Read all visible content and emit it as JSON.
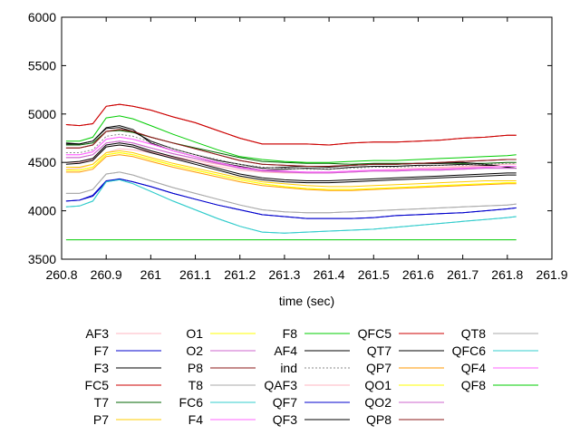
{
  "chart_data": {
    "type": "line",
    "title": "",
    "xlabel": "time (sec)",
    "ylabel": "",
    "xlim": [
      260.8,
      261.9
    ],
    "ylim": [
      3500,
      6000
    ],
    "x_ticks": [
      "260.8",
      "260.9",
      "261",
      "261.1",
      "261.2",
      "261.3",
      "261.4",
      "261.5",
      "261.6",
      "261.7",
      "261.8",
      "261.9"
    ],
    "y_ticks": [
      "3500",
      "4000",
      "4500",
      "5000",
      "5500",
      "6000"
    ],
    "grid": false,
    "legend_position": "bottom",
    "x": [
      260.81,
      260.84,
      260.87,
      260.9,
      260.93,
      260.96,
      261.0,
      261.05,
      261.1,
      261.15,
      261.2,
      261.25,
      261.3,
      261.35,
      261.4,
      261.45,
      261.5,
      261.55,
      261.6,
      261.65,
      261.7,
      261.75,
      261.8,
      261.82
    ],
    "series": [
      {
        "name": "AF3",
        "color": "#ffb6c1",
        "dash": "",
        "values": [
          4430,
          4440,
          4480,
          4600,
          4640,
          4630,
          4600,
          4560,
          4520,
          4480,
          4440,
          4420,
          4410,
          4400,
          4400,
          4410,
          4420,
          4430,
          4440,
          4450,
          4460,
          4470,
          4480,
          4480
        ]
      },
      {
        "name": "F7",
        "color": "#0000cc",
        "dash": "",
        "values": [
          4100,
          4110,
          4150,
          4300,
          4330,
          4300,
          4250,
          4180,
          4120,
          4060,
          4010,
          3960,
          3940,
          3920,
          3920,
          3920,
          3930,
          3950,
          3960,
          3970,
          3980,
          4000,
          4020,
          4030
        ]
      },
      {
        "name": "F3",
        "color": "#000000",
        "dash": "",
        "values": [
          4690,
          4690,
          4720,
          4860,
          4880,
          4840,
          4700,
          4620,
          4560,
          4500,
          4460,
          4420,
          4430,
          4440,
          4430,
          4450,
          4460,
          4460,
          4470,
          4470,
          4480,
          4470,
          4450,
          4440
        ]
      },
      {
        "name": "FC5",
        "color": "#cc0000",
        "dash": "",
        "values": [
          4890,
          4880,
          4900,
          5080,
          5100,
          5080,
          5040,
          4970,
          4910,
          4830,
          4750,
          4690,
          4690,
          4690,
          4680,
          4700,
          4710,
          4710,
          4720,
          4730,
          4750,
          4760,
          4780,
          4780
        ]
      },
      {
        "name": "T7",
        "color": "#006600",
        "dash": "",
        "values": [
          4680,
          4680,
          4700,
          4820,
          4830,
          4810,
          4760,
          4700,
          4650,
          4600,
          4550,
          4510,
          4500,
          4490,
          4490,
          4480,
          4490,
          4490,
          4490,
          4490,
          4490,
          4490,
          4500,
          4500
        ]
      },
      {
        "name": "P7",
        "color": "#ffcc00",
        "dash": "",
        "values": [
          4450,
          4450,
          4480,
          4600,
          4620,
          4600,
          4550,
          4490,
          4440,
          4390,
          4340,
          4300,
          4280,
          4260,
          4250,
          4250,
          4260,
          4270,
          4280,
          4290,
          4300,
          4310,
          4310,
          4310
        ]
      },
      {
        "name": "O1",
        "color": "#ffff00",
        "dash": "",
        "values": [
          4420,
          4420,
          4450,
          4580,
          4600,
          4580,
          4530,
          4470,
          4420,
          4370,
          4320,
          4280,
          4250,
          4230,
          4220,
          4220,
          4230,
          4240,
          4250,
          4260,
          4270,
          4280,
          4290,
          4290
        ]
      },
      {
        "name": "O2",
        "color": "#cc66cc",
        "dash": "",
        "values": [
          4550,
          4550,
          4580,
          4700,
          4720,
          4700,
          4650,
          4590,
          4540,
          4490,
          4440,
          4410,
          4400,
          4390,
          4390,
          4400,
          4410,
          4410,
          4420,
          4420,
          4430,
          4440,
          4440,
          4440
        ]
      },
      {
        "name": "P8",
        "color": "#8b1a1a",
        "dash": "",
        "values": [
          4650,
          4650,
          4680,
          4820,
          4840,
          4820,
          4760,
          4700,
          4640,
          4580,
          4520,
          4480,
          4470,
          4460,
          4460,
          4470,
          4480,
          4480,
          4490,
          4500,
          4510,
          4520,
          4530,
          4530
        ]
      },
      {
        "name": "T8",
        "color": "#aaaaaa",
        "dash": "",
        "values": [
          4180,
          4180,
          4220,
          4380,
          4400,
          4370,
          4310,
          4240,
          4180,
          4120,
          4060,
          4010,
          3990,
          3980,
          3980,
          3990,
          4000,
          4010,
          4020,
          4030,
          4040,
          4050,
          4060,
          4070
        ]
      },
      {
        "name": "FC6",
        "color": "#33cccc",
        "dash": "",
        "values": [
          4040,
          4050,
          4100,
          4300,
          4320,
          4280,
          4200,
          4100,
          4010,
          3920,
          3840,
          3780,
          3770,
          3780,
          3790,
          3800,
          3810,
          3830,
          3850,
          3870,
          3890,
          3910,
          3930,
          3940
        ]
      },
      {
        "name": "F4",
        "color": "#ff66ff",
        "dash": "",
        "values": [
          4580,
          4580,
          4610,
          4740,
          4760,
          4740,
          4690,
          4620,
          4560,
          4500,
          4450,
          4420,
          4410,
          4400,
          4400,
          4410,
          4420,
          4420,
          4430,
          4430,
          4440,
          4450,
          4460,
          4460
        ]
      },
      {
        "name": "F8",
        "color": "#00cc00",
        "dash": "",
        "values": [
          4720,
          4720,
          4760,
          4960,
          4980,
          4950,
          4880,
          4790,
          4710,
          4630,
          4560,
          4530,
          4510,
          4500,
          4500,
          4510,
          4520,
          4520,
          4530,
          4540,
          4550,
          4560,
          4570,
          4580
        ]
      },
      {
        "name": "AF4",
        "color": "#000000",
        "dash": "",
        "values": [
          4700,
          4690,
          4720,
          4850,
          4860,
          4820,
          4720,
          4640,
          4580,
          4520,
          4480,
          4440,
          4450,
          4460,
          4450,
          4470,
          4480,
          4480,
          4490,
          4490,
          4500,
          4480,
          4450,
          4440
        ]
      },
      {
        "name": "ind",
        "color": "#888888",
        "dash": "2,2",
        "values": [
          4600,
          4600,
          4630,
          4770,
          4790,
          4770,
          4710,
          4640,
          4580,
          4530,
          4480,
          4450,
          4440,
          4430,
          4430,
          4440,
          4450,
          4450,
          4460,
          4470,
          4470,
          4480,
          4490,
          4490
        ]
      },
      {
        "name": "QAF3",
        "color": "#ffb6c1",
        "dash": "",
        "values": [
          4500,
          4500,
          4530,
          4660,
          4680,
          4660,
          4610,
          4550,
          4500,
          4460,
          4420,
          4400,
          4390,
          4390,
          4390,
          4400,
          4410,
          4420,
          4430,
          4440,
          4450,
          4460,
          4460,
          4460
        ]
      },
      {
        "name": "QF7",
        "color": "#0000cc",
        "dash": "",
        "values": [
          4100,
          4110,
          4160,
          4310,
          4330,
          4300,
          4250,
          4180,
          4120,
          4060,
          4010,
          3960,
          3940,
          3920,
          3920,
          3920,
          3930,
          3950,
          3960,
          3970,
          3980,
          4000,
          4020,
          4030
        ]
      },
      {
        "name": "QF3",
        "color": "#000000",
        "dash": "",
        "values": [
          4500,
          4510,
          4540,
          4680,
          4700,
          4680,
          4620,
          4560,
          4500,
          4440,
          4380,
          4340,
          4320,
          4310,
          4310,
          4320,
          4330,
          4340,
          4350,
          4360,
          4370,
          4380,
          4390,
          4390
        ]
      },
      {
        "name": "QFC5",
        "color": "#cc0000",
        "dash": "",
        "values": [
          4890,
          4880,
          4900,
          5080,
          5100,
          5080,
          5040,
          4970,
          4910,
          4830,
          4750,
          4690,
          4690,
          4690,
          4680,
          4700,
          4710,
          4710,
          4720,
          4730,
          4750,
          4760,
          4780,
          4780
        ]
      },
      {
        "name": "QT7",
        "color": "#000000",
        "dash": "",
        "values": [
          4480,
          4490,
          4520,
          4660,
          4680,
          4660,
          4600,
          4540,
          4480,
          4420,
          4360,
          4320,
          4300,
          4290,
          4290,
          4300,
          4310,
          4320,
          4330,
          4340,
          4350,
          4360,
          4370,
          4370
        ]
      },
      {
        "name": "QP7",
        "color": "#ff9900",
        "dash": "",
        "values": [
          4400,
          4400,
          4430,
          4560,
          4580,
          4560,
          4510,
          4450,
          4400,
          4350,
          4300,
          4260,
          4240,
          4220,
          4210,
          4210,
          4220,
          4230,
          4240,
          4250,
          4260,
          4270,
          4280,
          4280
        ]
      },
      {
        "name": "QO1",
        "color": "#ffff00",
        "dash": "",
        "values": [
          4420,
          4420,
          4450,
          4580,
          4600,
          4580,
          4530,
          4470,
          4420,
          4370,
          4320,
          4280,
          4250,
          4230,
          4220,
          4220,
          4230,
          4240,
          4250,
          4260,
          4270,
          4280,
          4290,
          4290
        ]
      },
      {
        "name": "QO2",
        "color": "#cc66cc",
        "dash": "",
        "values": [
          4550,
          4550,
          4580,
          4700,
          4720,
          4700,
          4650,
          4590,
          4540,
          4490,
          4440,
          4410,
          4400,
          4390,
          4390,
          4400,
          4410,
          4410,
          4420,
          4420,
          4430,
          4440,
          4440,
          4440
        ]
      },
      {
        "name": "QP8",
        "color": "#8b1a1a",
        "dash": "",
        "values": [
          4650,
          4650,
          4680,
          4820,
          4840,
          4820,
          4760,
          4700,
          4640,
          4580,
          4520,
          4480,
          4470,
          4460,
          4460,
          4470,
          4480,
          4480,
          4490,
          4500,
          4510,
          4520,
          4530,
          4530
        ]
      },
      {
        "name": "QT8",
        "color": "#aaaaaa",
        "dash": "",
        "values": [
          4180,
          4180,
          4220,
          4380,
          4400,
          4370,
          4310,
          4240,
          4180,
          4120,
          4060,
          4010,
          3990,
          3980,
          3980,
          3990,
          4000,
          4010,
          4020,
          4030,
          4040,
          4050,
          4060,
          4070
        ]
      },
      {
        "name": "QFC6",
        "color": "#33cccc",
        "dash": "",
        "values": [
          4040,
          4050,
          4100,
          4300,
          4320,
          4280,
          4200,
          4100,
          4010,
          3920,
          3840,
          3780,
          3770,
          3780,
          3790,
          3800,
          3810,
          3830,
          3850,
          3870,
          3890,
          3910,
          3930,
          3940
        ]
      },
      {
        "name": "QF4",
        "color": "#ff66ff",
        "dash": "",
        "values": [
          4580,
          4580,
          4610,
          4740,
          4760,
          4740,
          4690,
          4620,
          4560,
          4500,
          4450,
          4420,
          4410,
          4400,
          4400,
          4410,
          4420,
          4420,
          4430,
          4430,
          4440,
          4450,
          4460,
          4460
        ]
      },
      {
        "name": "QF8",
        "color": "#00cc00",
        "dash": "",
        "values": [
          3700,
          3700,
          3700,
          3700,
          3700,
          3700,
          3700,
          3700,
          3700,
          3700,
          3700,
          3700,
          3700,
          3700,
          3700,
          3700,
          3700,
          3700,
          3700,
          3700,
          3700,
          3700,
          3700,
          3700
        ]
      }
    ]
  }
}
